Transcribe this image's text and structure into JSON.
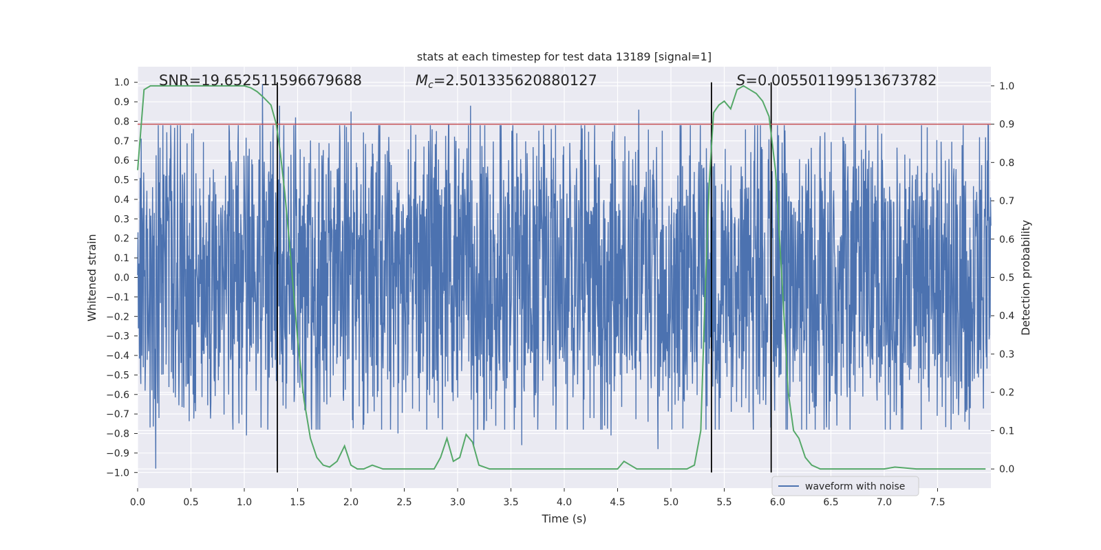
{
  "chart_data": {
    "type": "line",
    "title": "stats at each timestep for test data 13189 [signal=1]",
    "xlabel": "Time (s)",
    "ylabel": "Whitened strain",
    "y2label": "Detection probability",
    "xlim": [
      0.0,
      8.0
    ],
    "ylim": [
      -1.08,
      1.08
    ],
    "y2lim": [
      -0.05,
      1.05
    ],
    "xticks": [
      0.0,
      0.5,
      1.0,
      1.5,
      2.0,
      2.5,
      3.0,
      3.5,
      4.0,
      4.5,
      5.0,
      5.5,
      6.0,
      6.5,
      7.0,
      7.5
    ],
    "xtick_labels": [
      "0.0",
      "0.5",
      "1.0",
      "1.5",
      "2.0",
      "2.5",
      "3.0",
      "3.5",
      "4.0",
      "4.5",
      "5.0",
      "5.5",
      "6.0",
      "6.5",
      "7.0",
      "7.5"
    ],
    "yticks": [
      -1.0,
      -0.9,
      -0.8,
      -0.7,
      -0.6,
      -0.5,
      -0.4,
      -0.3,
      -0.2,
      -0.1,
      0.0,
      0.1,
      0.2,
      0.3,
      0.4,
      0.5,
      0.6,
      0.7,
      0.8,
      0.9,
      1.0
    ],
    "ytick_labels": [
      "−1.0",
      "−0.9",
      "−0.8",
      "−0.7",
      "−0.6",
      "−0.5",
      "−0.4",
      "−0.3",
      "−0.2",
      "−0.1",
      "0.0",
      "0.1",
      "0.2",
      "0.3",
      "0.4",
      "0.5",
      "0.6",
      "0.7",
      "0.8",
      "0.9",
      "1.0"
    ],
    "y2ticks": [
      0.0,
      0.1,
      0.2,
      0.3,
      0.4,
      0.5,
      0.6,
      0.7,
      0.8,
      0.9,
      1.0
    ],
    "y2tick_labels": [
      "0.0",
      "0.1",
      "0.2",
      "0.3",
      "0.4",
      "0.5",
      "0.6",
      "0.7",
      "0.8",
      "0.9",
      "1.0"
    ],
    "grid": true,
    "legend": {
      "placement": "lower-center-right",
      "entries": [
        "waveform with noise"
      ]
    },
    "annotations": {
      "snr": "SNR=19.652511596679688",
      "mc_symbol": "M",
      "mc_sub": "c",
      "mc_value": "=2.501335620880127",
      "s_symbol": "S",
      "s_value": "=0.005501199513673782"
    },
    "threshold": {
      "axis": "y2",
      "value": 0.9,
      "color": "#c44e52"
    },
    "vlines": {
      "x": [
        1.31,
        5.38,
        5.94
      ],
      "ymin": -1.0,
      "ymax": 1.0,
      "color": "#000000"
    },
    "waveform": {
      "name": "waveform with noise",
      "color": "#4c72b0",
      "description_note": "",
      "x_range": [
        0.0,
        8.0
      ],
      "envelope": 0.45,
      "spikes": [
        {
          "x": 0.17,
          "y": -0.98
        },
        {
          "x": 1.17,
          "y": 0.99
        },
        {
          "x": 1.33,
          "y": 0.88
        },
        {
          "x": 1.48,
          "y": 0.82
        },
        {
          "x": 2.0,
          "y": 0.85
        },
        {
          "x": 2.8,
          "y": 0.75
        },
        {
          "x": 3.12,
          "y": 0.88
        },
        {
          "x": 3.15,
          "y": -0.87
        },
        {
          "x": 4.7,
          "y": 0.86
        },
        {
          "x": 4.88,
          "y": -0.88
        },
        {
          "x": 6.73,
          "y": 0.97
        },
        {
          "x": 1.02,
          "y": -0.81
        },
        {
          "x": 2.44,
          "y": -0.8
        },
        {
          "x": 3.6,
          "y": -0.86
        },
        {
          "x": 4.44,
          "y": -0.81
        }
      ]
    },
    "probability": {
      "name": "detection probability",
      "color": "#55a868",
      "x": [
        0.0,
        0.06,
        0.12,
        0.2,
        0.4,
        0.6,
        0.8,
        1.0,
        1.06,
        1.12,
        1.18,
        1.25,
        1.3,
        1.34,
        1.38,
        1.42,
        1.46,
        1.5,
        1.56,
        1.62,
        1.68,
        1.74,
        1.8,
        1.87,
        1.94,
        2.0,
        2.06,
        2.12,
        2.2,
        2.3,
        2.5,
        2.7,
        2.78,
        2.84,
        2.9,
        2.96,
        3.02,
        3.08,
        3.14,
        3.2,
        3.3,
        3.5,
        3.7,
        3.9,
        4.1,
        4.3,
        4.5,
        4.56,
        4.62,
        4.68,
        4.8,
        5.0,
        5.15,
        5.22,
        5.28,
        5.32,
        5.36,
        5.4,
        5.45,
        5.5,
        5.56,
        5.62,
        5.68,
        5.74,
        5.8,
        5.86,
        5.92,
        5.98,
        6.04,
        6.1,
        6.15,
        6.2,
        6.26,
        6.32,
        6.4,
        6.6,
        6.8,
        7.0,
        7.1,
        7.3,
        7.5,
        7.7,
        7.9,
        7.95
      ],
      "y": [
        0.78,
        0.99,
        1.0,
        1.0,
        1.0,
        1.0,
        1.0,
        1.0,
        0.995,
        0.985,
        0.97,
        0.95,
        0.9,
        0.82,
        0.72,
        0.6,
        0.47,
        0.34,
        0.18,
        0.08,
        0.03,
        0.01,
        0.005,
        0.02,
        0.06,
        0.01,
        0.0,
        0.0,
        0.01,
        0.0,
        0.0,
        0.0,
        0.0,
        0.03,
        0.08,
        0.02,
        0.03,
        0.09,
        0.07,
        0.01,
        0.0,
        0.0,
        0.0,
        0.0,
        0.0,
        0.0,
        0.0,
        0.02,
        0.01,
        0.0,
        0.0,
        0.0,
        0.0,
        0.01,
        0.1,
        0.45,
        0.75,
        0.93,
        0.95,
        0.96,
        0.94,
        0.99,
        1.0,
        0.99,
        0.98,
        0.96,
        0.92,
        0.78,
        0.5,
        0.2,
        0.1,
        0.08,
        0.03,
        0.01,
        0.0,
        0.0,
        0.0,
        0.0,
        0.005,
        0.0,
        0.0,
        0.0,
        0.0,
        0.0
      ]
    }
  }
}
